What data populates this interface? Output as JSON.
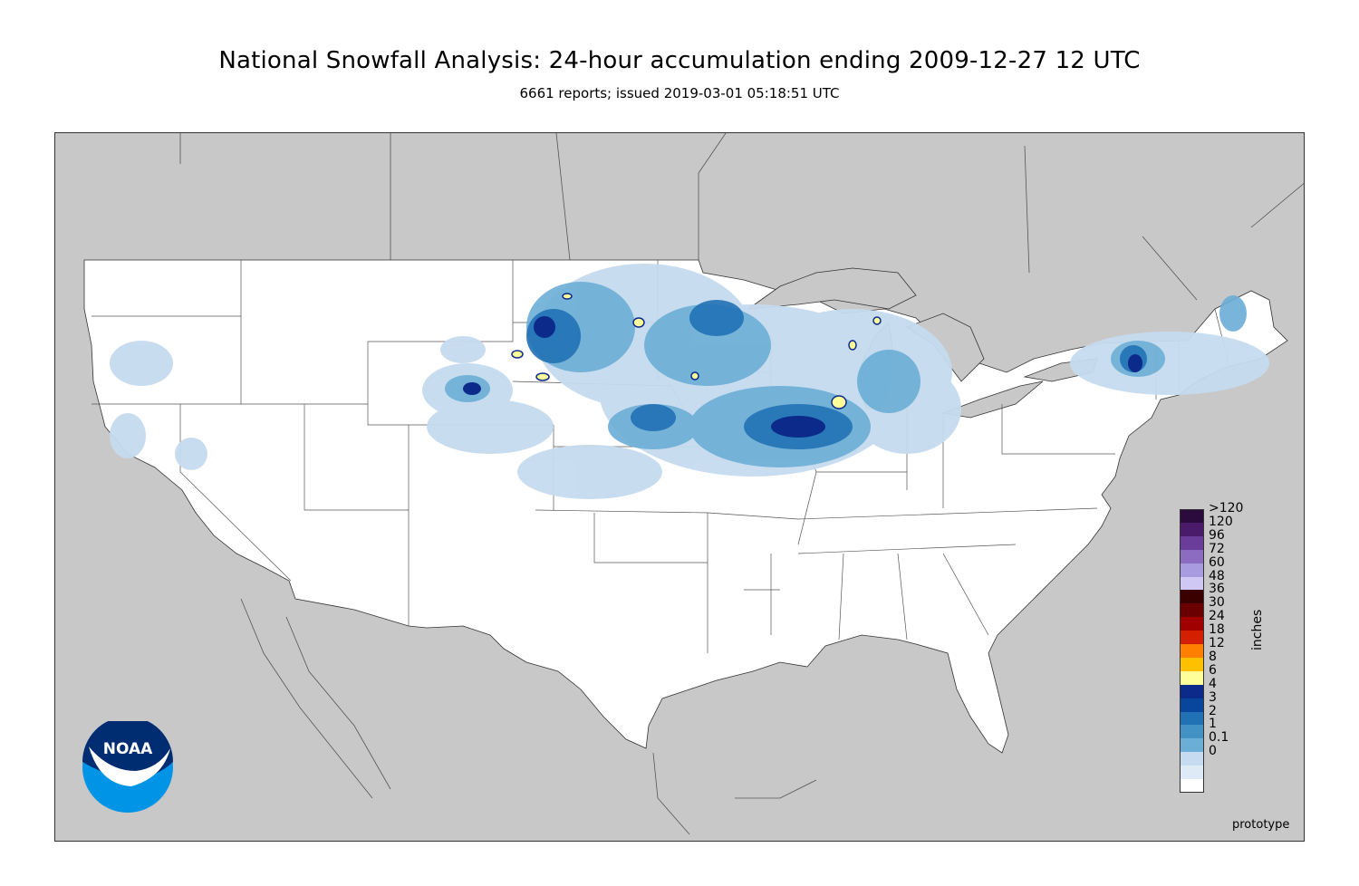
{
  "title": "National Snowfall Analysis: 24-hour accumulation ending 2009-12-27 12 UTC",
  "subtitle": "6661 reports; issued 2019-03-01 05:18:51 UTC",
  "legend": {
    "units": "inches",
    "classes": [
      {
        "label": ">120",
        "color": "#2b0a3d"
      },
      {
        "label": "120",
        "color": "#4a1a6b"
      },
      {
        "label": "96",
        "color": "#6a3d9a"
      },
      {
        "label": "72",
        "color": "#8b6cc0"
      },
      {
        "label": "60",
        "color": "#a99be0"
      },
      {
        "label": "48",
        "color": "#cfc8f5"
      },
      {
        "label": "36",
        "color": "#3a0000"
      },
      {
        "label": "30",
        "color": "#6b0000"
      },
      {
        "label": "24",
        "color": "#a00000"
      },
      {
        "label": "18",
        "color": "#d42000"
      },
      {
        "label": "12",
        "color": "#ff8000"
      },
      {
        "label": "8",
        "color": "#ffc000"
      },
      {
        "label": "6",
        "color": "#ffff99"
      },
      {
        "label": "4",
        "color": "#0b2a8a"
      },
      {
        "label": "3",
        "color": "#08459c"
      },
      {
        "label": "2",
        "color": "#2171b5"
      },
      {
        "label": "1",
        "color": "#4292c6"
      },
      {
        "label": "0.1",
        "color": "#6baed6"
      },
      {
        "label": "0",
        "color": "#c6dbef"
      },
      {
        "label": "",
        "color": "#deebf7"
      },
      {
        "label": "",
        "color": "#ffffff"
      }
    ]
  },
  "logo_text": "NOAA",
  "watermark": "prototype",
  "colors": {
    "ocean": "#c8c8c8",
    "land": "#ffffff",
    "border": "#333333"
  }
}
